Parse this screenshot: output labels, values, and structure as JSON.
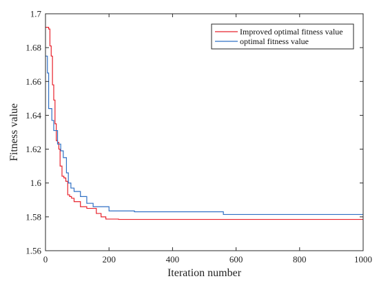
{
  "chart_data": {
    "type": "line",
    "title": "",
    "xlabel": "Iteration number",
    "ylabel": "Fitness value",
    "xlim": [
      0,
      1000
    ],
    "ylim": [
      1.56,
      1.7
    ],
    "xticks": [
      0,
      200,
      400,
      600,
      800,
      1000
    ],
    "yticks": [
      1.56,
      1.58,
      1.6,
      1.62,
      1.64,
      1.66,
      1.68,
      1.7
    ],
    "xtick_labels": [
      "0",
      "200",
      "400",
      "600",
      "800",
      "1000"
    ],
    "ytick_labels": [
      "1.56",
      "1.58",
      "1.6",
      "1.62",
      "1.64",
      "1.66",
      "1.68",
      "1.7"
    ],
    "grid": false,
    "legend_position": "top-right",
    "series": [
      {
        "name": "Improved optimal fitness value",
        "color": "#e8202a",
        "step": true,
        "x": [
          0,
          10,
          14,
          18,
          22,
          26,
          30,
          34,
          38,
          42,
          46,
          52,
          58,
          64,
          70,
          76,
          82,
          90,
          110,
          130,
          160,
          175,
          190,
          230,
          1000
        ],
        "y": [
          1.692,
          1.691,
          1.681,
          1.675,
          1.658,
          1.649,
          1.635,
          1.625,
          1.624,
          1.62,
          1.61,
          1.604,
          1.603,
          1.601,
          1.593,
          1.592,
          1.591,
          1.589,
          1.586,
          1.585,
          1.582,
          1.58,
          1.5787,
          1.5785,
          1.5785
        ]
      },
      {
        "name": "optimal fitness value",
        "color": "#2f6fc4",
        "step": true,
        "x": [
          0,
          6,
          10,
          16,
          20,
          26,
          32,
          38,
          48,
          56,
          66,
          72,
          80,
          90,
          110,
          130,
          150,
          200,
          280,
          560,
          1000
        ],
        "y": [
          1.675,
          1.665,
          1.644,
          1.644,
          1.637,
          1.631,
          1.631,
          1.623,
          1.619,
          1.615,
          1.606,
          1.6,
          1.597,
          1.595,
          1.592,
          1.588,
          1.586,
          1.5835,
          1.583,
          1.5814,
          1.5814
        ]
      }
    ]
  }
}
